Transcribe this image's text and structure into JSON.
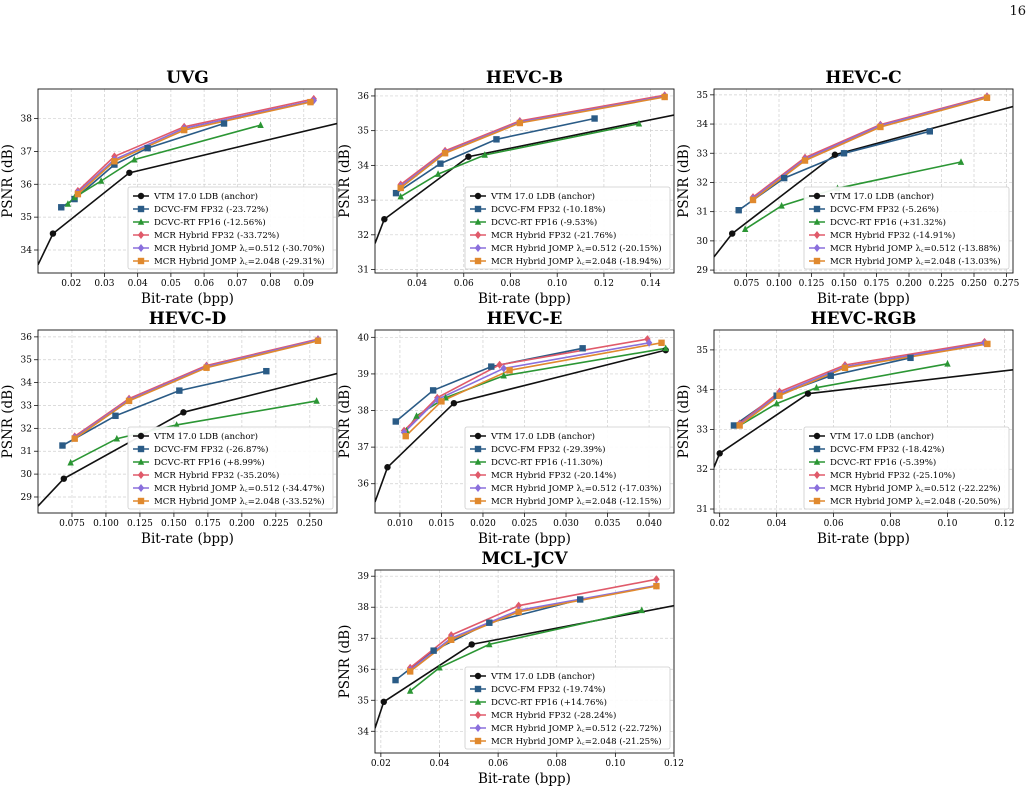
{
  "page": {
    "number": "16"
  },
  "legend_labels": {
    "vtm": "VTM 17.0 LDB (anchor)",
    "fm": "DCVC-FM FP32",
    "rt": "DCVC-RT FP16",
    "mcr": "MCR Hybrid FP32",
    "j512": "MCR Hybrid JOMP λ_C=0.512",
    "j2048": "MCR Hybrid JOMP λ_C=2.048"
  },
  "colors": {
    "vtm": "#111111",
    "fm": "#2a5b86",
    "rt": "#2b9634",
    "mcr": "#e05a6a",
    "j512": "#8a6fdc",
    "j2048": "#e0892e"
  },
  "markers": {
    "vtm": "circle",
    "fm": "square",
    "rt": "triangle",
    "mcr": "diamond",
    "j512": "diamond",
    "j2048": "square"
  },
  "chart_data": [
    {
      "type": "line",
      "title": "UVG",
      "xlabel": "Bit-rate (bpp)",
      "ylabel": "PSNR (dB)",
      "xlim": [
        0.01,
        0.1
      ],
      "ylim": [
        33.3,
        38.9
      ],
      "xticks": [
        0.02,
        0.03,
        0.04,
        0.05,
        0.06,
        0.07,
        0.08,
        0.09
      ],
      "xtick_labels": [
        "0.02",
        "0.03",
        "0.04",
        "0.05",
        "0.06",
        "0.07",
        "0.08",
        "0.09"
      ],
      "yticks": [
        34,
        35,
        36,
        37,
        38
      ],
      "ytick_labels": [
        "34",
        "35",
        "36",
        "37",
        "38"
      ],
      "grid": true,
      "legend": "lower-right",
      "series": [
        {
          "key": "vtm",
          "name": "VTM 17.0 LDB (anchor)",
          "pct": "",
          "x": [
            0.01,
            0.0145,
            0.0375,
            0.1
          ],
          "y": [
            33.55,
            34.5,
            36.35,
            37.85
          ]
        },
        {
          "key": "fm",
          "name": "DCVC-FM FP32",
          "pct": "(-23.72%)",
          "x": [
            0.017,
            0.021,
            0.033,
            0.043,
            0.066
          ],
          "y": [
            35.3,
            35.55,
            36.6,
            37.1,
            37.85
          ]
        },
        {
          "key": "rt",
          "name": "DCVC-RT FP16",
          "pct": "(-12.56%)",
          "x": [
            0.019,
            0.021,
            0.029,
            0.039,
            0.077
          ],
          "y": [
            35.4,
            35.6,
            36.1,
            36.75,
            37.8
          ]
        },
        {
          "key": "mcr",
          "name": "MCR Hybrid FP32",
          "pct": "(-33.72%)",
          "x": [
            0.022,
            0.033,
            0.054,
            0.093
          ],
          "y": [
            35.8,
            36.85,
            37.75,
            38.6
          ]
        },
        {
          "key": "j512",
          "name": "MCR Hybrid JOMP λ_C=0.512",
          "pct": "(-30.70%)",
          "x": [
            0.022,
            0.033,
            0.054,
            0.093
          ],
          "y": [
            35.75,
            36.75,
            37.7,
            38.55
          ]
        },
        {
          "key": "j2048",
          "name": "MCR Hybrid JOMP λ_C=2.048",
          "pct": "(-29.31%)",
          "x": [
            0.022,
            0.033,
            0.054,
            0.092
          ],
          "y": [
            35.7,
            36.7,
            37.65,
            38.5
          ]
        }
      ]
    },
    {
      "type": "line",
      "title": "HEVC-B",
      "xlabel": "Bit-rate (bpp)",
      "ylabel": "PSNR (dB)",
      "xlim": [
        0.022,
        0.15
      ],
      "ylim": [
        30.9,
        36.2
      ],
      "xticks": [
        0.04,
        0.06,
        0.08,
        0.1,
        0.12,
        0.14
      ],
      "xtick_labels": [
        "0.04",
        "0.06",
        "0.08",
        "0.10",
        "0.12",
        "0.14"
      ],
      "yticks": [
        31,
        32,
        33,
        34,
        35,
        36
      ],
      "ytick_labels": [
        "31",
        "32",
        "33",
        "34",
        "35",
        "36"
      ],
      "grid": true,
      "legend": "lower-right",
      "series": [
        {
          "key": "vtm",
          "name": "VTM 17.0 LDB (anchor)",
          "pct": "",
          "x": [
            0.022,
            0.026,
            0.062,
            0.15
          ],
          "y": [
            31.75,
            32.45,
            34.25,
            35.45
          ]
        },
        {
          "key": "fm",
          "name": "DCVC-FM FP32",
          "pct": "(-10.18%)",
          "x": [
            0.031,
            0.05,
            0.074,
            0.116
          ],
          "y": [
            33.2,
            34.05,
            34.75,
            35.35
          ]
        },
        {
          "key": "rt",
          "name": "DCVC-RT FP16",
          "pct": "(-9.53%)",
          "x": [
            0.033,
            0.049,
            0.069,
            0.135
          ],
          "y": [
            33.1,
            33.75,
            34.3,
            35.2
          ]
        },
        {
          "key": "mcr",
          "name": "MCR Hybrid FP32",
          "pct": "(-21.76%)",
          "x": [
            0.033,
            0.052,
            0.084,
            0.146
          ],
          "y": [
            33.45,
            34.42,
            35.28,
            36.02
          ]
        },
        {
          "key": "j512",
          "name": "MCR Hybrid JOMP λ_C=0.512",
          "pct": "(-20.15%)",
          "x": [
            0.033,
            0.052,
            0.084,
            0.146
          ],
          "y": [
            33.4,
            34.38,
            35.25,
            35.99
          ]
        },
        {
          "key": "j2048",
          "name": "MCR Hybrid JOMP λ_C=2.048",
          "pct": "(-18.94%)",
          "x": [
            0.033,
            0.052,
            0.084,
            0.146
          ],
          "y": [
            33.35,
            34.35,
            35.22,
            35.97
          ]
        }
      ]
    },
    {
      "type": "line",
      "title": "HEVC-C",
      "xlabel": "Bit-rate (bpp)",
      "ylabel": "PSNR (dB)",
      "xlim": [
        0.05,
        0.28
      ],
      "ylim": [
        28.9,
        35.2
      ],
      "xticks": [
        0.075,
        0.1,
        0.125,
        0.15,
        0.175,
        0.2,
        0.225,
        0.25,
        0.275
      ],
      "xtick_labels": [
        "0.075",
        "0.100",
        "0.125",
        "0.150",
        "0.175",
        "0.200",
        "0.225",
        "0.250",
        "0.275"
      ],
      "yticks": [
        29,
        30,
        31,
        32,
        33,
        34,
        35
      ],
      "ytick_labels": [
        "29",
        "30",
        "31",
        "32",
        "33",
        "34",
        "35"
      ],
      "grid": true,
      "legend": "lower-right",
      "series": [
        {
          "key": "vtm",
          "name": "VTM 17.0 LDB (anchor)",
          "pct": "",
          "x": [
            0.05,
            0.064,
            0.143,
            0.28
          ],
          "y": [
            29.45,
            30.25,
            32.95,
            34.6
          ]
        },
        {
          "key": "fm",
          "name": "DCVC-FM FP32",
          "pct": "(-5.26%)",
          "x": [
            0.069,
            0.104,
            0.15,
            0.216
          ],
          "y": [
            31.05,
            32.15,
            33.0,
            33.75
          ]
        },
        {
          "key": "rt",
          "name": "DCVC-RT FP16",
          "pct": "(+31.32%)",
          "x": [
            0.074,
            0.102,
            0.145,
            0.24
          ],
          "y": [
            30.4,
            31.2,
            31.8,
            32.7
          ]
        },
        {
          "key": "mcr",
          "name": "MCR Hybrid FP32",
          "pct": "(-14.91%)",
          "x": [
            0.08,
            0.12,
            0.178,
            0.26
          ],
          "y": [
            31.5,
            32.85,
            33.98,
            34.95
          ]
        },
        {
          "key": "j512",
          "name": "MCR Hybrid JOMP λ_C=0.512",
          "pct": "(-13.88%)",
          "x": [
            0.08,
            0.12,
            0.178,
            0.26
          ],
          "y": [
            31.45,
            32.8,
            33.95,
            34.92
          ]
        },
        {
          "key": "j2048",
          "name": "MCR Hybrid JOMP λ_C=2.048",
          "pct": "(-13.03%)",
          "x": [
            0.08,
            0.12,
            0.178,
            0.26
          ],
          "y": [
            31.4,
            32.75,
            33.9,
            34.9
          ]
        }
      ]
    },
    {
      "type": "line",
      "title": "HEVC-D",
      "xlabel": "Bit-rate (bpp)",
      "ylabel": "PSNR (dB)",
      "xlim": [
        0.05,
        0.27
      ],
      "ylim": [
        28.3,
        36.3
      ],
      "xticks": [
        0.075,
        0.1,
        0.125,
        0.15,
        0.175,
        0.2,
        0.225,
        0.25
      ],
      "xtick_labels": [
        "0.075",
        "0.100",
        "0.125",
        "0.150",
        "0.175",
        "0.200",
        "0.225",
        "0.250"
      ],
      "yticks": [
        29,
        30,
        31,
        32,
        33,
        34,
        35,
        36
      ],
      "ytick_labels": [
        "29",
        "30",
        "31",
        "32",
        "33",
        "34",
        "35",
        "36"
      ],
      "grid": true,
      "legend": "lower-right",
      "series": [
        {
          "key": "vtm",
          "name": "VTM 17.0 LDB (anchor)",
          "pct": "",
          "x": [
            0.05,
            0.069,
            0.157,
            0.27
          ],
          "y": [
            28.6,
            29.8,
            32.7,
            34.4
          ]
        },
        {
          "key": "fm",
          "name": "DCVC-FM FP32",
          "pct": "(-26.87%)",
          "x": [
            0.068,
            0.107,
            0.154,
            0.218
          ],
          "y": [
            31.25,
            32.55,
            33.65,
            34.5
          ]
        },
        {
          "key": "rt",
          "name": "DCVC-RT FP16",
          "pct": "(+8.99%)",
          "x": [
            0.074,
            0.108,
            0.152,
            0.255
          ],
          "y": [
            30.5,
            31.55,
            32.15,
            33.2
          ]
        },
        {
          "key": "mcr",
          "name": "MCR Hybrid FP32",
          "pct": "(-35.20%)",
          "x": [
            0.077,
            0.117,
            0.174,
            0.256
          ],
          "y": [
            31.65,
            33.3,
            34.75,
            35.9
          ]
        },
        {
          "key": "j512",
          "name": "MCR Hybrid JOMP λ_C=0.512",
          "pct": "(-34.47%)",
          "x": [
            0.077,
            0.117,
            0.174,
            0.256
          ],
          "y": [
            31.6,
            33.25,
            34.7,
            35.87
          ]
        },
        {
          "key": "j2048",
          "name": "MCR Hybrid JOMP λ_C=2.048",
          "pct": "(-33.52%)",
          "x": [
            0.077,
            0.117,
            0.174,
            0.256
          ],
          "y": [
            31.55,
            33.2,
            34.65,
            35.83
          ]
        }
      ]
    },
    {
      "type": "line",
      "title": "HEVC-E",
      "xlabel": "Bit-rate (bpp)",
      "ylabel": "PSNR (dB)",
      "xlim": [
        0.007,
        0.043
      ],
      "ylim": [
        35.2,
        40.2
      ],
      "xticks": [
        0.01,
        0.015,
        0.02,
        0.025,
        0.03,
        0.035,
        0.04
      ],
      "xtick_labels": [
        "0.010",
        "0.015",
        "0.020",
        "0.025",
        "0.030",
        "0.035",
        "0.040"
      ],
      "yticks": [
        36,
        37,
        38,
        39,
        40
      ],
      "ytick_labels": [
        "36",
        "37",
        "38",
        "39",
        "40"
      ],
      "grid": true,
      "legend": "lower-right",
      "series": [
        {
          "key": "vtm",
          "name": "VTM 17.0 LDB (anchor)",
          "pct": "",
          "x": [
            0.007,
            0.0085,
            0.0165,
            0.042
          ],
          "y": [
            35.5,
            36.45,
            38.2,
            39.65
          ]
        },
        {
          "key": "fm",
          "name": "DCVC-FM FP32",
          "pct": "(-29.39%)",
          "x": [
            0.0095,
            0.014,
            0.021,
            0.032
          ],
          "y": [
            37.7,
            38.55,
            39.2,
            39.7
          ]
        },
        {
          "key": "rt",
          "name": "DCVC-RT FP16",
          "pct": "(-11.30%)",
          "x": [
            0.0108,
            0.012,
            0.0155,
            0.0225,
            0.042
          ],
          "y": [
            37.45,
            37.85,
            38.35,
            38.95,
            39.7
          ]
        },
        {
          "key": "mcr",
          "name": "MCR Hybrid FP32",
          "pct": "(-20.14%)",
          "x": [
            0.0105,
            0.0145,
            0.022,
            0.0398
          ],
          "y": [
            37.45,
            38.35,
            39.25,
            39.95
          ]
        },
        {
          "key": "j512",
          "name": "MCR Hybrid JOMP λ_C=0.512",
          "pct": "(-17.03%)",
          "x": [
            0.0105,
            0.0145,
            0.0225,
            0.04
          ],
          "y": [
            37.4,
            38.3,
            39.15,
            39.85
          ]
        },
        {
          "key": "j2048",
          "name": "MCR Hybrid JOMP λ_C=2.048",
          "pct": "(-12.15%)",
          "x": [
            0.0107,
            0.015,
            0.0232,
            0.0415
          ],
          "y": [
            37.3,
            38.25,
            39.1,
            39.85
          ]
        }
      ]
    },
    {
      "type": "line",
      "title": "HEVC-RGB",
      "xlabel": "Bit-rate (bpp)",
      "ylabel": "PSNR (dB)",
      "xlim": [
        0.018,
        0.123
      ],
      "ylim": [
        30.9,
        35.5
      ],
      "xticks": [
        0.02,
        0.04,
        0.06,
        0.08,
        0.1,
        0.12
      ],
      "xtick_labels": [
        "0.02",
        "0.04",
        "0.06",
        "0.08",
        "0.10",
        "0.12"
      ],
      "yticks": [
        31,
        32,
        33,
        34,
        35
      ],
      "ytick_labels": [
        "31",
        "32",
        "33",
        "34",
        "35"
      ],
      "grid": true,
      "legend": "lower-right",
      "series": [
        {
          "key": "vtm",
          "name": "VTM 17.0 LDB (anchor)",
          "pct": "",
          "x": [
            0.018,
            0.02,
            0.051,
            0.123
          ],
          "y": [
            32.05,
            32.4,
            33.9,
            34.5
          ]
        },
        {
          "key": "fm",
          "name": "DCVC-FM FP32",
          "pct": "(-18.42%)",
          "x": [
            0.025,
            0.04,
            0.059,
            0.087
          ],
          "y": [
            33.1,
            33.85,
            34.35,
            34.8
          ]
        },
        {
          "key": "rt",
          "name": "DCVC-RT FP16",
          "pct": "(-5.39%)",
          "x": [
            0.027,
            0.04,
            0.054,
            0.1
          ],
          "y": [
            33.1,
            33.65,
            34.05,
            34.65
          ]
        },
        {
          "key": "mcr",
          "name": "MCR Hybrid FP32",
          "pct": "(-25.10%)",
          "x": [
            0.027,
            0.041,
            0.064,
            0.113
          ],
          "y": [
            33.15,
            33.95,
            34.62,
            35.2
          ]
        },
        {
          "key": "j512",
          "name": "MCR Hybrid JOMP λ_C=0.512",
          "pct": "(-22.22%)",
          "x": [
            0.027,
            0.041,
            0.064,
            0.113
          ],
          "y": [
            33.12,
            33.9,
            34.58,
            35.17
          ]
        },
        {
          "key": "j2048",
          "name": "MCR Hybrid JOMP λ_C=2.048",
          "pct": "(-20.50%)",
          "x": [
            0.027,
            0.041,
            0.064,
            0.114
          ],
          "y": [
            33.1,
            33.85,
            34.55,
            35.15
          ]
        }
      ]
    },
    {
      "type": "line",
      "title": "MCL-JCV",
      "xlabel": "Bit-rate (bpp)",
      "ylabel": "PSNR (dB)",
      "xlim": [
        0.018,
        0.12
      ],
      "ylim": [
        33.3,
        39.2
      ],
      "xticks": [
        0.02,
        0.04,
        0.06,
        0.08,
        0.1,
        0.12
      ],
      "xtick_labels": [
        "0.02",
        "0.04",
        "0.06",
        "0.08",
        "0.10",
        "0.12"
      ],
      "yticks": [
        34,
        35,
        36,
        37,
        38,
        39
      ],
      "ytick_labels": [
        "34",
        "35",
        "36",
        "37",
        "38",
        "39"
      ],
      "grid": true,
      "legend": "lower-right",
      "series": [
        {
          "key": "vtm",
          "name": "VTM 17.0 LDB (anchor)",
          "pct": "",
          "x": [
            0.018,
            0.021,
            0.051,
            0.12
          ],
          "y": [
            34.1,
            34.95,
            36.8,
            38.05
          ]
        },
        {
          "key": "fm",
          "name": "DCVC-FM FP32",
          "pct": "(-19.74%)",
          "x": [
            0.025,
            0.038,
            0.057,
            0.088
          ],
          "y": [
            35.65,
            36.6,
            37.5,
            38.25
          ]
        },
        {
          "key": "rt",
          "name": "DCVC-RT FP16",
          "pct": "(+14.76%)",
          "x": [
            0.03,
            0.04,
            0.057,
            0.109
          ],
          "y": [
            35.3,
            36.05,
            36.8,
            37.9
          ]
        },
        {
          "key": "mcr",
          "name": "MCR Hybrid FP32",
          "pct": "(-28.24%)",
          "x": [
            0.03,
            0.044,
            0.067,
            0.114
          ],
          "y": [
            36.05,
            37.1,
            38.05,
            38.9
          ]
        },
        {
          "key": "j512",
          "name": "MCR Hybrid JOMP λ_C=0.512",
          "pct": "(-22.72%)",
          "x": [
            0.03,
            0.044,
            0.067,
            0.114
          ],
          "y": [
            35.98,
            37.0,
            37.9,
            38.7
          ]
        },
        {
          "key": "j2048",
          "name": "MCR Hybrid JOMP λ_C=2.048",
          "pct": "(-21.25%)",
          "x": [
            0.03,
            0.044,
            0.067,
            0.114
          ],
          "y": [
            35.93,
            36.95,
            37.85,
            38.68
          ]
        }
      ]
    }
  ]
}
